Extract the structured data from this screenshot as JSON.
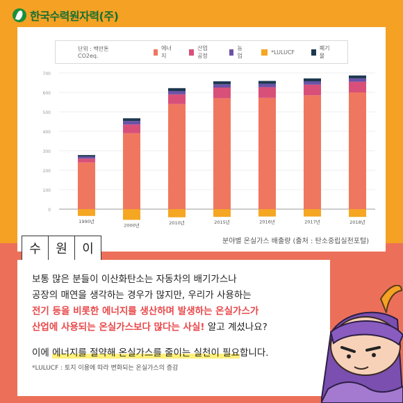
{
  "logo": {
    "text": "한국수력원자력(주)"
  },
  "chart_data": {
    "type": "bar",
    "stacked": true,
    "categories": [
      "1990년",
      "2000년",
      "2010년",
      "2015년",
      "2016년",
      "2017년",
      "2018년"
    ],
    "series": [
      {
        "name": "에너지",
        "color": "#ef7760",
        "values": [
          240,
          390,
          540,
          570,
          572,
          585,
          600
        ]
      },
      {
        "name": "산업공정",
        "color": "#d85079",
        "values": [
          20,
          45,
          50,
          55,
          55,
          55,
          55
        ]
      },
      {
        "name": "농업",
        "color": "#6b52a8",
        "values": [
          10,
          18,
          17,
          17,
          17,
          17,
          17
        ]
      },
      {
        "name": "*LULUCF",
        "color": "#f5a623",
        "values": [
          -35,
          -55,
          -42,
          -40,
          -38,
          -38,
          -40
        ]
      },
      {
        "name": "폐기물",
        "color": "#1e3850",
        "values": [
          8,
          14,
          15,
          15,
          15,
          15,
          15
        ]
      }
    ],
    "yticks": [
      0,
      100,
      200,
      300,
      400,
      500,
      600,
      700
    ],
    "ylim": [
      -60,
      700
    ],
    "legend_unit": "단위 : 백만톤 CO2eq.",
    "legend_position": "top",
    "grid": true
  },
  "caption": "분야별 온실가스 배출량 (출처 : 탄소중립실천포털)",
  "name_label": [
    "수",
    "원",
    "이"
  ],
  "body": {
    "line1": "보통 많은 분들이 이산화탄소는 자동차의 배기가스나",
    "line2": "공장의 매연을 생각하는 경우가 많지만, 우리가 사용하는",
    "line3": "전기 등을 비롯한 에너지를 생산하며 발생하는 온실가스가",
    "line4_hl": "산업에 사용되는 온실가스보다 많다는 사실!",
    "line4_rest": " 알고 계셨나요?",
    "line5_a": "이에 ",
    "line5_mark": "에너지를 절약해 온실가스를 줄이는 실천이 필요",
    "line5_b": "합니다.",
    "footnote": "*LULUCF : 토지 이용에 따라 변화되는 온실가스의 증감"
  }
}
